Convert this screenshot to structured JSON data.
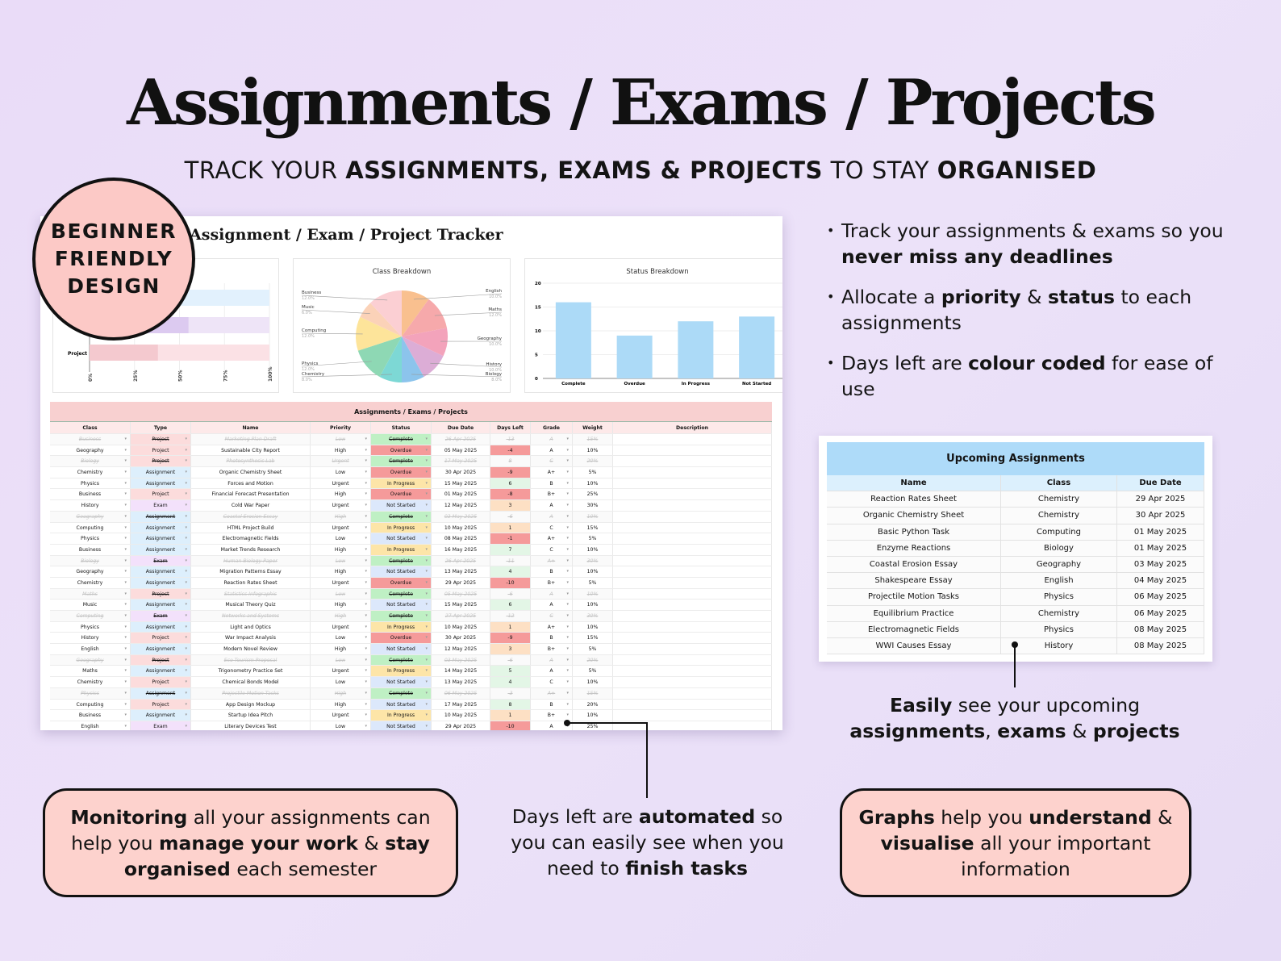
{
  "header": {
    "title": "Assignments / Exams / Projects",
    "subtitle": [
      [
        "TRACK YOUR ",
        false
      ],
      [
        "ASSIGNMENTS, EXAMS & PROJECTS",
        true
      ],
      [
        " TO STAY ",
        false
      ],
      [
        "ORGANISED",
        true
      ]
    ]
  },
  "badge": {
    "lines": [
      "BEGINNER",
      "FRIENDLY",
      "DESIGN"
    ],
    "color": "#fcc9c6"
  },
  "sheet": {
    "title": "Assignment / Exam / Project Tracker",
    "table_title": "Assignments / Exams / Projects",
    "columns": [
      "Class",
      "Type",
      "Name",
      "Priority",
      "Status",
      "Due Date",
      "Days Left",
      "Grade",
      "Weight",
      "Description"
    ],
    "rows": [
      [
        "Business",
        "Project",
        "Marketing Plan Draft",
        "Low",
        "Complete",
        "26 Apr 2025",
        "-13",
        "A",
        "15%",
        true
      ],
      [
        "Geography",
        "Project",
        "Sustainable City Report",
        "High",
        "Overdue",
        "05 May 2025",
        "-4",
        "A",
        "10%",
        false
      ],
      [
        "Biology",
        "Project",
        "Photosynthesis Lab",
        "Urgent",
        "Complete",
        "17 May 2025",
        "8",
        "C",
        "20%",
        true
      ],
      [
        "Chemistry",
        "Assignment",
        "Organic Chemistry Sheet",
        "Low",
        "Overdue",
        "30 Apr 2025",
        "-9",
        "A+",
        "5%",
        false
      ],
      [
        "Physics",
        "Assignment",
        "Forces and Motion",
        "Urgent",
        "In Progress",
        "15 May 2025",
        "6",
        "B",
        "10%",
        false
      ],
      [
        "Business",
        "Project",
        "Financial Forecast Presentation",
        "High",
        "Overdue",
        "01 May 2025",
        "-8",
        "B+",
        "25%",
        false
      ],
      [
        "History",
        "Exam",
        "Cold War Paper",
        "Urgent",
        "Not Started",
        "12 May 2025",
        "3",
        "A",
        "30%",
        false
      ],
      [
        "Geography",
        "Assignment",
        "Coastal Erosion Essay",
        "High",
        "Complete",
        "03 May 2025",
        "-6",
        "A",
        "10%",
        true
      ],
      [
        "Computing",
        "Assignment",
        "HTML Project Build",
        "Urgent",
        "In Progress",
        "10 May 2025",
        "1",
        "C",
        "15%",
        false
      ],
      [
        "Physics",
        "Assignment",
        "Electromagnetic Fields",
        "Low",
        "Not Started",
        "08 May 2025",
        "-1",
        "A+",
        "5%",
        false
      ],
      [
        "Business",
        "Assignment",
        "Market Trends Research",
        "High",
        "In Progress",
        "16 May 2025",
        "7",
        "C",
        "10%",
        false
      ],
      [
        "Biology",
        "Exam",
        "Human Biology Paper",
        "Low",
        "Complete",
        "26 Apr 2025",
        "-11",
        "A+",
        "30%",
        true
      ],
      [
        "Geography",
        "Assignment",
        "Migration Patterns Essay",
        "High",
        "Not Started",
        "13 May 2025",
        "4",
        "B",
        "10%",
        false
      ],
      [
        "Chemistry",
        "Assignment",
        "Reaction Rates Sheet",
        "Urgent",
        "Overdue",
        "29 Apr 2025",
        "-10",
        "B+",
        "5%",
        false
      ],
      [
        "Maths",
        "Project",
        "Statistics Infographic",
        "Low",
        "Complete",
        "05 May 2025",
        "-6",
        "A",
        "10%",
        true
      ],
      [
        "Music",
        "Assignment",
        "Musical Theory Quiz",
        "High",
        "Not Started",
        "15 May 2025",
        "6",
        "A",
        "10%",
        false
      ],
      [
        "Computing",
        "Exam",
        "Networks and Systems",
        "High",
        "Complete",
        "27 Apr 2025",
        "-12",
        "C",
        "30%",
        true
      ],
      [
        "Physics",
        "Assignment",
        "Light and Optics",
        "Urgent",
        "In Progress",
        "10 May 2025",
        "1",
        "A+",
        "10%",
        false
      ],
      [
        "History",
        "Project",
        "War Impact Analysis",
        "Low",
        "Overdue",
        "30 Apr 2025",
        "-9",
        "B",
        "15%",
        false
      ],
      [
        "English",
        "Assignment",
        "Modern Novel Review",
        "High",
        "Not Started",
        "12 May 2025",
        "3",
        "B+",
        "5%",
        false
      ],
      [
        "Geography",
        "Project",
        "Eco-Tourism Proposal",
        "Low",
        "Complete",
        "03 May 2025",
        "-6",
        "A",
        "20%",
        true
      ],
      [
        "Maths",
        "Assignment",
        "Trigonometry Practice Set",
        "Urgent",
        "In Progress",
        "14 May 2025",
        "5",
        "A",
        "5%",
        false
      ],
      [
        "Chemistry",
        "Project",
        "Chemical Bonds Model",
        "Low",
        "Not Started",
        "13 May 2025",
        "4",
        "C",
        "10%",
        false
      ],
      [
        "Physics",
        "Assignment",
        "Projectile Motion Tasks",
        "High",
        "Complete",
        "06 May 2025",
        "-3",
        "A+",
        "15%",
        true
      ],
      [
        "Computing",
        "Project",
        "App Design Mockup",
        "High",
        "Not Started",
        "17 May 2025",
        "8",
        "B",
        "20%",
        false
      ],
      [
        "Business",
        "Assignment",
        "Startup Idea Pitch",
        "Urgent",
        "In Progress",
        "10 May 2025",
        "1",
        "B+",
        "10%",
        false
      ],
      [
        "English",
        "Exam",
        "Literary Devices Test",
        "Low",
        "Not Started",
        "29 Apr 2025",
        "-10",
        "A",
        "25%",
        false
      ]
    ],
    "type_colors": {
      "Project": "#fcdcdc",
      "Assignment": "#ddeffc",
      "Exam": "#f3e1fb"
    },
    "status_colors": {
      "Complete": "#bff0c4",
      "Overdue": "#f59a9a",
      "In Progress": "#fde5a8",
      "Not Started": "#dce8fb"
    },
    "days_colors": {
      "overdue": "#f59a9a",
      "soon": "#fde0c4",
      "ok": "#e3f6e6"
    }
  },
  "chart_data": [
    {
      "type": "bar",
      "orientation": "horizontal",
      "categories": [
        "",
        "",
        "Project"
      ],
      "values": [
        null,
        55,
        38
      ],
      "colors": [
        "#d6ecfc",
        "#dccaf0",
        "#f4c9cf"
      ],
      "track_colors": [
        "#e2f1fd",
        "#eee4f7",
        "#fbe1e5"
      ],
      "xticks": [
        "0%",
        "25%",
        "50%",
        "75%",
        "100%"
      ],
      "xlim": [
        0,
        100
      ]
    },
    {
      "type": "pie",
      "title": "Class Breakdown",
      "labels": [
        "English",
        "Maths",
        "Geography",
        "History",
        "Biology",
        "Chemistry",
        "Physics",
        "Computing",
        "Music",
        "Business"
      ],
      "values": [
        10,
        12,
        10,
        10,
        8,
        8,
        12,
        12,
        6,
        12
      ],
      "value_labels": [
        "10.0%",
        "12.0%",
        "10.0%",
        "10.0%",
        "8.0%",
        "8.0%",
        "12.0%",
        "12.0%",
        "6.0%",
        "12.0%"
      ],
      "colors": [
        "#f9c08f",
        "#f6a9ab",
        "#f3a3bb",
        "#dcadd6",
        "#8cc4ec",
        "#7dd8d5",
        "#8ed8b4",
        "#fde49a",
        "#fbd2b8",
        "#fbcfd3"
      ]
    },
    {
      "type": "bar",
      "title": "Status Breakdown",
      "categories": [
        "Complete",
        "Overdue",
        "In Progress",
        "Not Started"
      ],
      "values": [
        16,
        9,
        12,
        13
      ],
      "ylim": [
        0,
        20
      ],
      "yticks": [
        "0",
        "5",
        "10",
        "15",
        "20"
      ],
      "color": "#acdaf7",
      "grid": true
    }
  ],
  "bullets": [
    [
      [
        "Track your assignments & exams so you ",
        false
      ],
      [
        "never miss any deadlines",
        true
      ]
    ],
    [
      [
        "Allocate a ",
        false
      ],
      [
        "priority",
        true
      ],
      [
        " & ",
        false
      ],
      [
        "status",
        true
      ],
      [
        " to each assignments",
        false
      ]
    ],
    [
      [
        "Days left are ",
        false
      ],
      [
        "colour coded",
        true
      ],
      [
        " for ease of use",
        false
      ]
    ]
  ],
  "upcoming": {
    "title": "Upcoming Assignments",
    "columns": [
      "Name",
      "Class",
      "Due Date"
    ],
    "rows": [
      [
        "Reaction Rates Sheet",
        "Chemistry",
        "29 Apr 2025"
      ],
      [
        "Organic Chemistry Sheet",
        "Chemistry",
        "30 Apr 2025"
      ],
      [
        "Basic Python Task",
        "Computing",
        "01 May 2025"
      ],
      [
        "Enzyme Reactions",
        "Biology",
        "01 May 2025"
      ],
      [
        "Coastal Erosion Essay",
        "Geography",
        "03 May 2025"
      ],
      [
        "Shakespeare Essay",
        "English",
        "04 May 2025"
      ],
      [
        "Projectile Motion Tasks",
        "Physics",
        "06 May 2025"
      ],
      [
        "Equilibrium Practice",
        "Chemistry",
        "06 May 2025"
      ],
      [
        "Electromagnetic Fields",
        "Physics",
        "08 May 2025"
      ],
      [
        "WWI Causes Essay",
        "History",
        "08 May 2025"
      ]
    ]
  },
  "caption": [
    [
      "Easily",
      true
    ],
    [
      " see your upcoming ",
      false
    ],
    [
      "assignments",
      true
    ],
    [
      ", ",
      false
    ],
    [
      "exams",
      true
    ],
    [
      " & ",
      false
    ],
    [
      "projects",
      true
    ]
  ],
  "callouts": {
    "left": [
      [
        "Monitoring",
        true
      ],
      [
        " all your assignments can help you ",
        false
      ],
      [
        "manage your work",
        true
      ],
      [
        " & ",
        false
      ],
      [
        "stay organised",
        true
      ],
      [
        " each semester",
        false
      ]
    ],
    "middle": [
      [
        "Days left are ",
        false
      ],
      [
        "automated",
        true
      ],
      [
        " so you can easily see when you need to ",
        false
      ],
      [
        "finish tasks",
        true
      ]
    ],
    "right": [
      [
        "Graphs",
        true
      ],
      [
        " help you ",
        false
      ],
      [
        "understand",
        true
      ],
      [
        " & ",
        false
      ],
      [
        "visualise",
        true
      ],
      [
        " all your important information",
        false
      ]
    ]
  }
}
